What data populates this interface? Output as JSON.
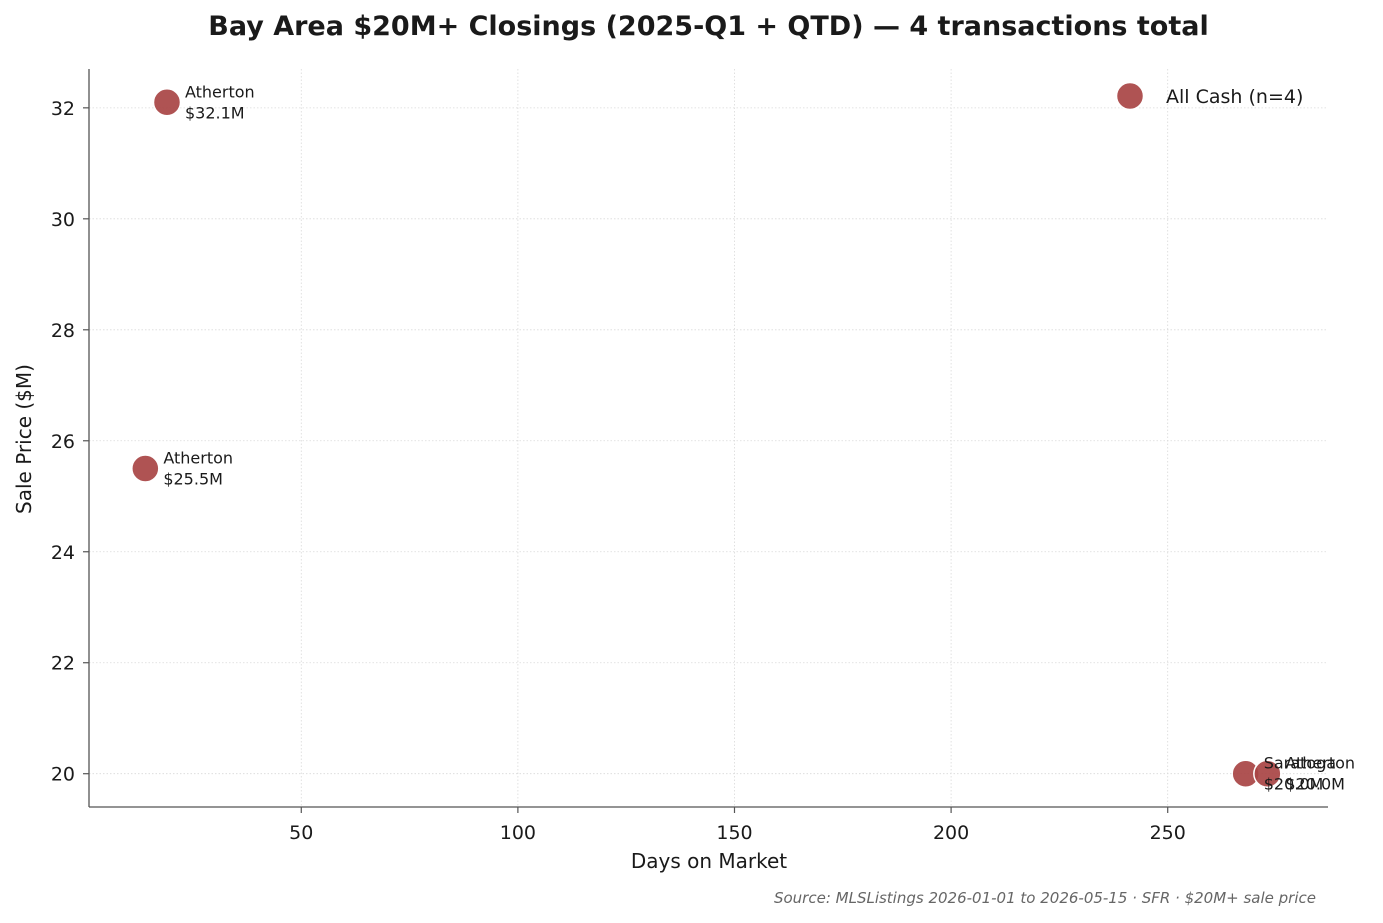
{
  "chart_data": {
    "type": "scatter",
    "title": "Bay Area $20M+ Closings (2025-Q1 + QTD) — 4 transactions total",
    "xlabel": "Days on Market",
    "ylabel": "Sale Price ($M)",
    "xlim": [
      1,
      287
    ],
    "ylim": [
      19.4,
      32.7
    ],
    "xticks": [
      50,
      100,
      150,
      200,
      250
    ],
    "yticks": [
      20,
      22,
      24,
      26,
      28,
      30,
      32
    ],
    "grid": true,
    "legend_position": "top-right",
    "series": [
      {
        "name": "All Cash (n=4)",
        "color": "#a84444",
        "points": [
          {
            "x": 19,
            "y": 32.1,
            "city": "Atherton",
            "price_label": "$32.1M"
          },
          {
            "x": 14,
            "y": 25.5,
            "city": "Atherton",
            "price_label": "$25.5M"
          },
          {
            "x": 268,
            "y": 20.0,
            "city": "Saratoga",
            "price_label": "$20.0M"
          },
          {
            "x": 273,
            "y": 20.0,
            "city": "Atherton",
            "price_label": "$20.0M"
          }
        ]
      }
    ]
  },
  "source_note": "Source: MLSListings 2026-01-01 to 2026-05-15 · SFR · $20M+ sale price"
}
